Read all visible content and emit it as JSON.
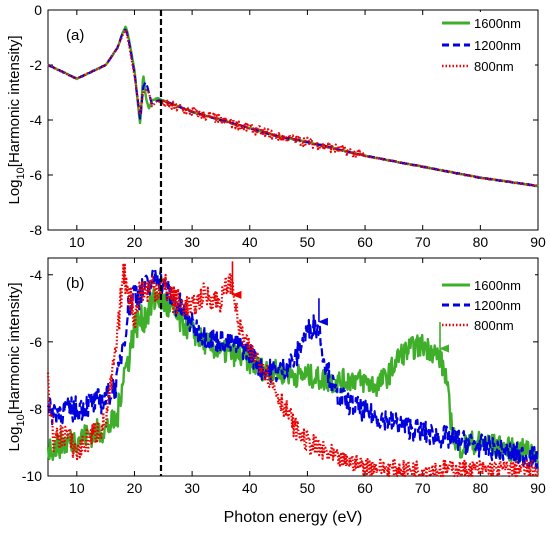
{
  "figure": {
    "xlabel": "Photon energy (eV)",
    "ylabel_prefix": "Log",
    "ylabel_sub": "10",
    "ylabel_suffix": "[Harmonic intensity]"
  },
  "colors": {
    "1600nm": "#3fae2a",
    "1200nm": "#0000dd",
    "800nm": "#ee0000",
    "marker": "#000000"
  },
  "chart_data": [
    {
      "type": "line",
      "panel_label": "(a)",
      "xlim": [
        5,
        90
      ],
      "ylim": [
        -8,
        0
      ],
      "x_ticks": [
        10,
        20,
        30,
        40,
        50,
        60,
        70,
        80,
        90
      ],
      "y_ticks": [
        0,
        -2,
        -4,
        -6,
        -8
      ],
      "vline_x": 24.6,
      "legend_position": "top-right",
      "series": [
        {
          "name": "1600nm",
          "style": "solid",
          "x": [
            5,
            10,
            15,
            17,
            18,
            18.5,
            19,
            20,
            21,
            21.5,
            22,
            22.5,
            23,
            24,
            25,
            30,
            35,
            40,
            45,
            50,
            60,
            70,
            80,
            90
          ],
          "y": [
            -2.0,
            -2.5,
            -2.0,
            -1.4,
            -0.8,
            -0.6,
            -1.0,
            -2.2,
            -4.2,
            -2.3,
            -3.2,
            -3.6,
            -3.3,
            -3.2,
            -3.3,
            -3.7,
            -4.0,
            -4.3,
            -4.6,
            -4.8,
            -5.3,
            -5.7,
            -6.1,
            -6.4
          ]
        },
        {
          "name": "1200nm",
          "style": "dashed",
          "x": [
            5,
            10,
            15,
            17,
            18,
            18.5,
            19,
            20,
            21,
            21.5,
            22,
            22.5,
            23,
            24,
            25,
            30,
            35,
            40,
            45,
            50,
            60,
            70,
            80,
            90
          ],
          "y": [
            -2.0,
            -2.5,
            -2.0,
            -1.4,
            -0.8,
            -0.7,
            -1.1,
            -2.3,
            -4.0,
            -2.8,
            -2.6,
            -3.0,
            -3.4,
            -3.3,
            -3.3,
            -3.7,
            -4.0,
            -4.3,
            -4.6,
            -4.8,
            -5.3,
            -5.7,
            -6.1,
            -6.4
          ]
        },
        {
          "name": "800nm",
          "style": "dotted",
          "x": [
            5,
            10,
            15,
            17,
            18,
            18.5,
            19,
            20,
            21,
            21.5,
            22,
            22.5,
            23,
            24,
            25,
            30,
            35,
            40,
            45,
            50,
            60,
            70,
            80,
            90
          ],
          "y": [
            -2.0,
            -2.5,
            -2.0,
            -1.4,
            -0.9,
            -0.7,
            -1.2,
            -2.4,
            -3.8,
            -3.0,
            -2.9,
            -3.0,
            -3.5,
            -3.3,
            -3.4,
            -3.7,
            -4.0,
            -4.3,
            -4.6,
            -4.8,
            -5.3,
            -5.7,
            -6.1,
            -6.4
          ]
        }
      ]
    },
    {
      "type": "line",
      "panel_label": "(b)",
      "xlim": [
        5,
        90
      ],
      "ylim": [
        -10,
        -3.5
      ],
      "x_ticks": [
        10,
        20,
        30,
        40,
        50,
        60,
        70,
        80,
        90
      ],
      "x_tick_labels": [
        "10",
        "20",
        "30",
        "40",
        "50",
        "60",
        "70",
        "80",
        "90"
      ],
      "y_ticks": [
        -4,
        -6,
        -8,
        -10
      ],
      "vline_x": 24.6,
      "legend_position": "top-right",
      "series": [
        {
          "name": "1600nm",
          "style": "solid",
          "x": [
            5,
            10,
            15,
            17,
            18,
            19,
            20,
            21,
            22,
            23,
            24,
            25,
            26,
            28,
            30,
            32,
            35,
            38,
            40,
            42,
            45,
            48,
            50,
            52,
            55,
            58,
            60,
            62,
            64,
            66,
            68,
            70,
            72,
            73,
            74,
            75,
            76,
            78,
            80,
            85,
            90
          ],
          "y": [
            -9.2,
            -8.9,
            -8.6,
            -8.3,
            -7.0,
            -6.5,
            -5.5,
            -5.4,
            -5.2,
            -4.9,
            -4.6,
            -4.8,
            -5.0,
            -5.4,
            -5.7,
            -6.0,
            -6.3,
            -6.4,
            -6.6,
            -6.8,
            -6.9,
            -7.0,
            -7.0,
            -7.1,
            -7.2,
            -7.1,
            -7.2,
            -7.3,
            -7.0,
            -6.4,
            -6.2,
            -6.1,
            -6.3,
            -6.5,
            -7.0,
            -8.5,
            -9.2,
            -9.0,
            -9.0,
            -9.2,
            -9.3
          ]
        },
        {
          "name": "1200nm",
          "style": "dashed",
          "x": [
            5,
            10,
            15,
            17,
            18,
            19,
            20,
            21,
            22,
            23,
            24,
            25,
            26,
            28,
            30,
            32,
            35,
            38,
            40,
            42,
            45,
            48,
            49,
            50,
            51,
            52,
            53,
            55,
            58,
            60,
            65,
            70,
            75,
            80,
            85,
            90
          ],
          "y": [
            -8.1,
            -8.0,
            -7.7,
            -7.2,
            -6.0,
            -5.0,
            -4.5,
            -4.6,
            -4.4,
            -4.3,
            -3.9,
            -4.3,
            -4.6,
            -5.0,
            -5.5,
            -5.8,
            -6.0,
            -6.1,
            -6.3,
            -6.8,
            -6.9,
            -6.5,
            -6.0,
            -5.7,
            -5.5,
            -5.6,
            -6.6,
            -7.6,
            -7.9,
            -8.1,
            -8.4,
            -8.7,
            -8.9,
            -9.1,
            -9.3,
            -9.5
          ]
        },
        {
          "name": "800nm",
          "style": "dotted",
          "x": [
            5,
            6,
            8,
            10,
            12,
            15,
            17,
            18,
            19,
            20,
            21,
            22,
            23,
            24,
            25,
            27,
            30,
            32,
            35,
            36,
            37,
            38,
            40,
            42,
            45,
            48,
            50,
            52,
            55,
            58,
            60,
            65,
            70,
            75,
            80,
            85,
            90
          ],
          "y": [
            -7.3,
            -9.0,
            -8.7,
            -9.3,
            -8.9,
            -8.4,
            -6.0,
            -4.0,
            -4.4,
            -5.3,
            -4.4,
            -4.5,
            -4.3,
            -4.4,
            -4.3,
            -4.8,
            -5.0,
            -4.6,
            -4.8,
            -4.3,
            -4.2,
            -5.5,
            -6.3,
            -6.6,
            -7.6,
            -8.6,
            -9.0,
            -9.2,
            -9.5,
            -9.6,
            -9.7,
            -9.8,
            -9.8,
            -9.8,
            -9.8,
            -9.8,
            -9.8
          ]
        }
      ],
      "arrows": [
        {
          "series": "800nm",
          "x": 37.0,
          "y_from": -3.6,
          "y_to": -4.6
        },
        {
          "series": "1200nm",
          "x": 52.0,
          "y_from": -4.7,
          "y_to": -5.4
        },
        {
          "series": "1600nm",
          "x": 73.0,
          "y_from": -5.3,
          "y_to": -6.2
        }
      ]
    }
  ]
}
